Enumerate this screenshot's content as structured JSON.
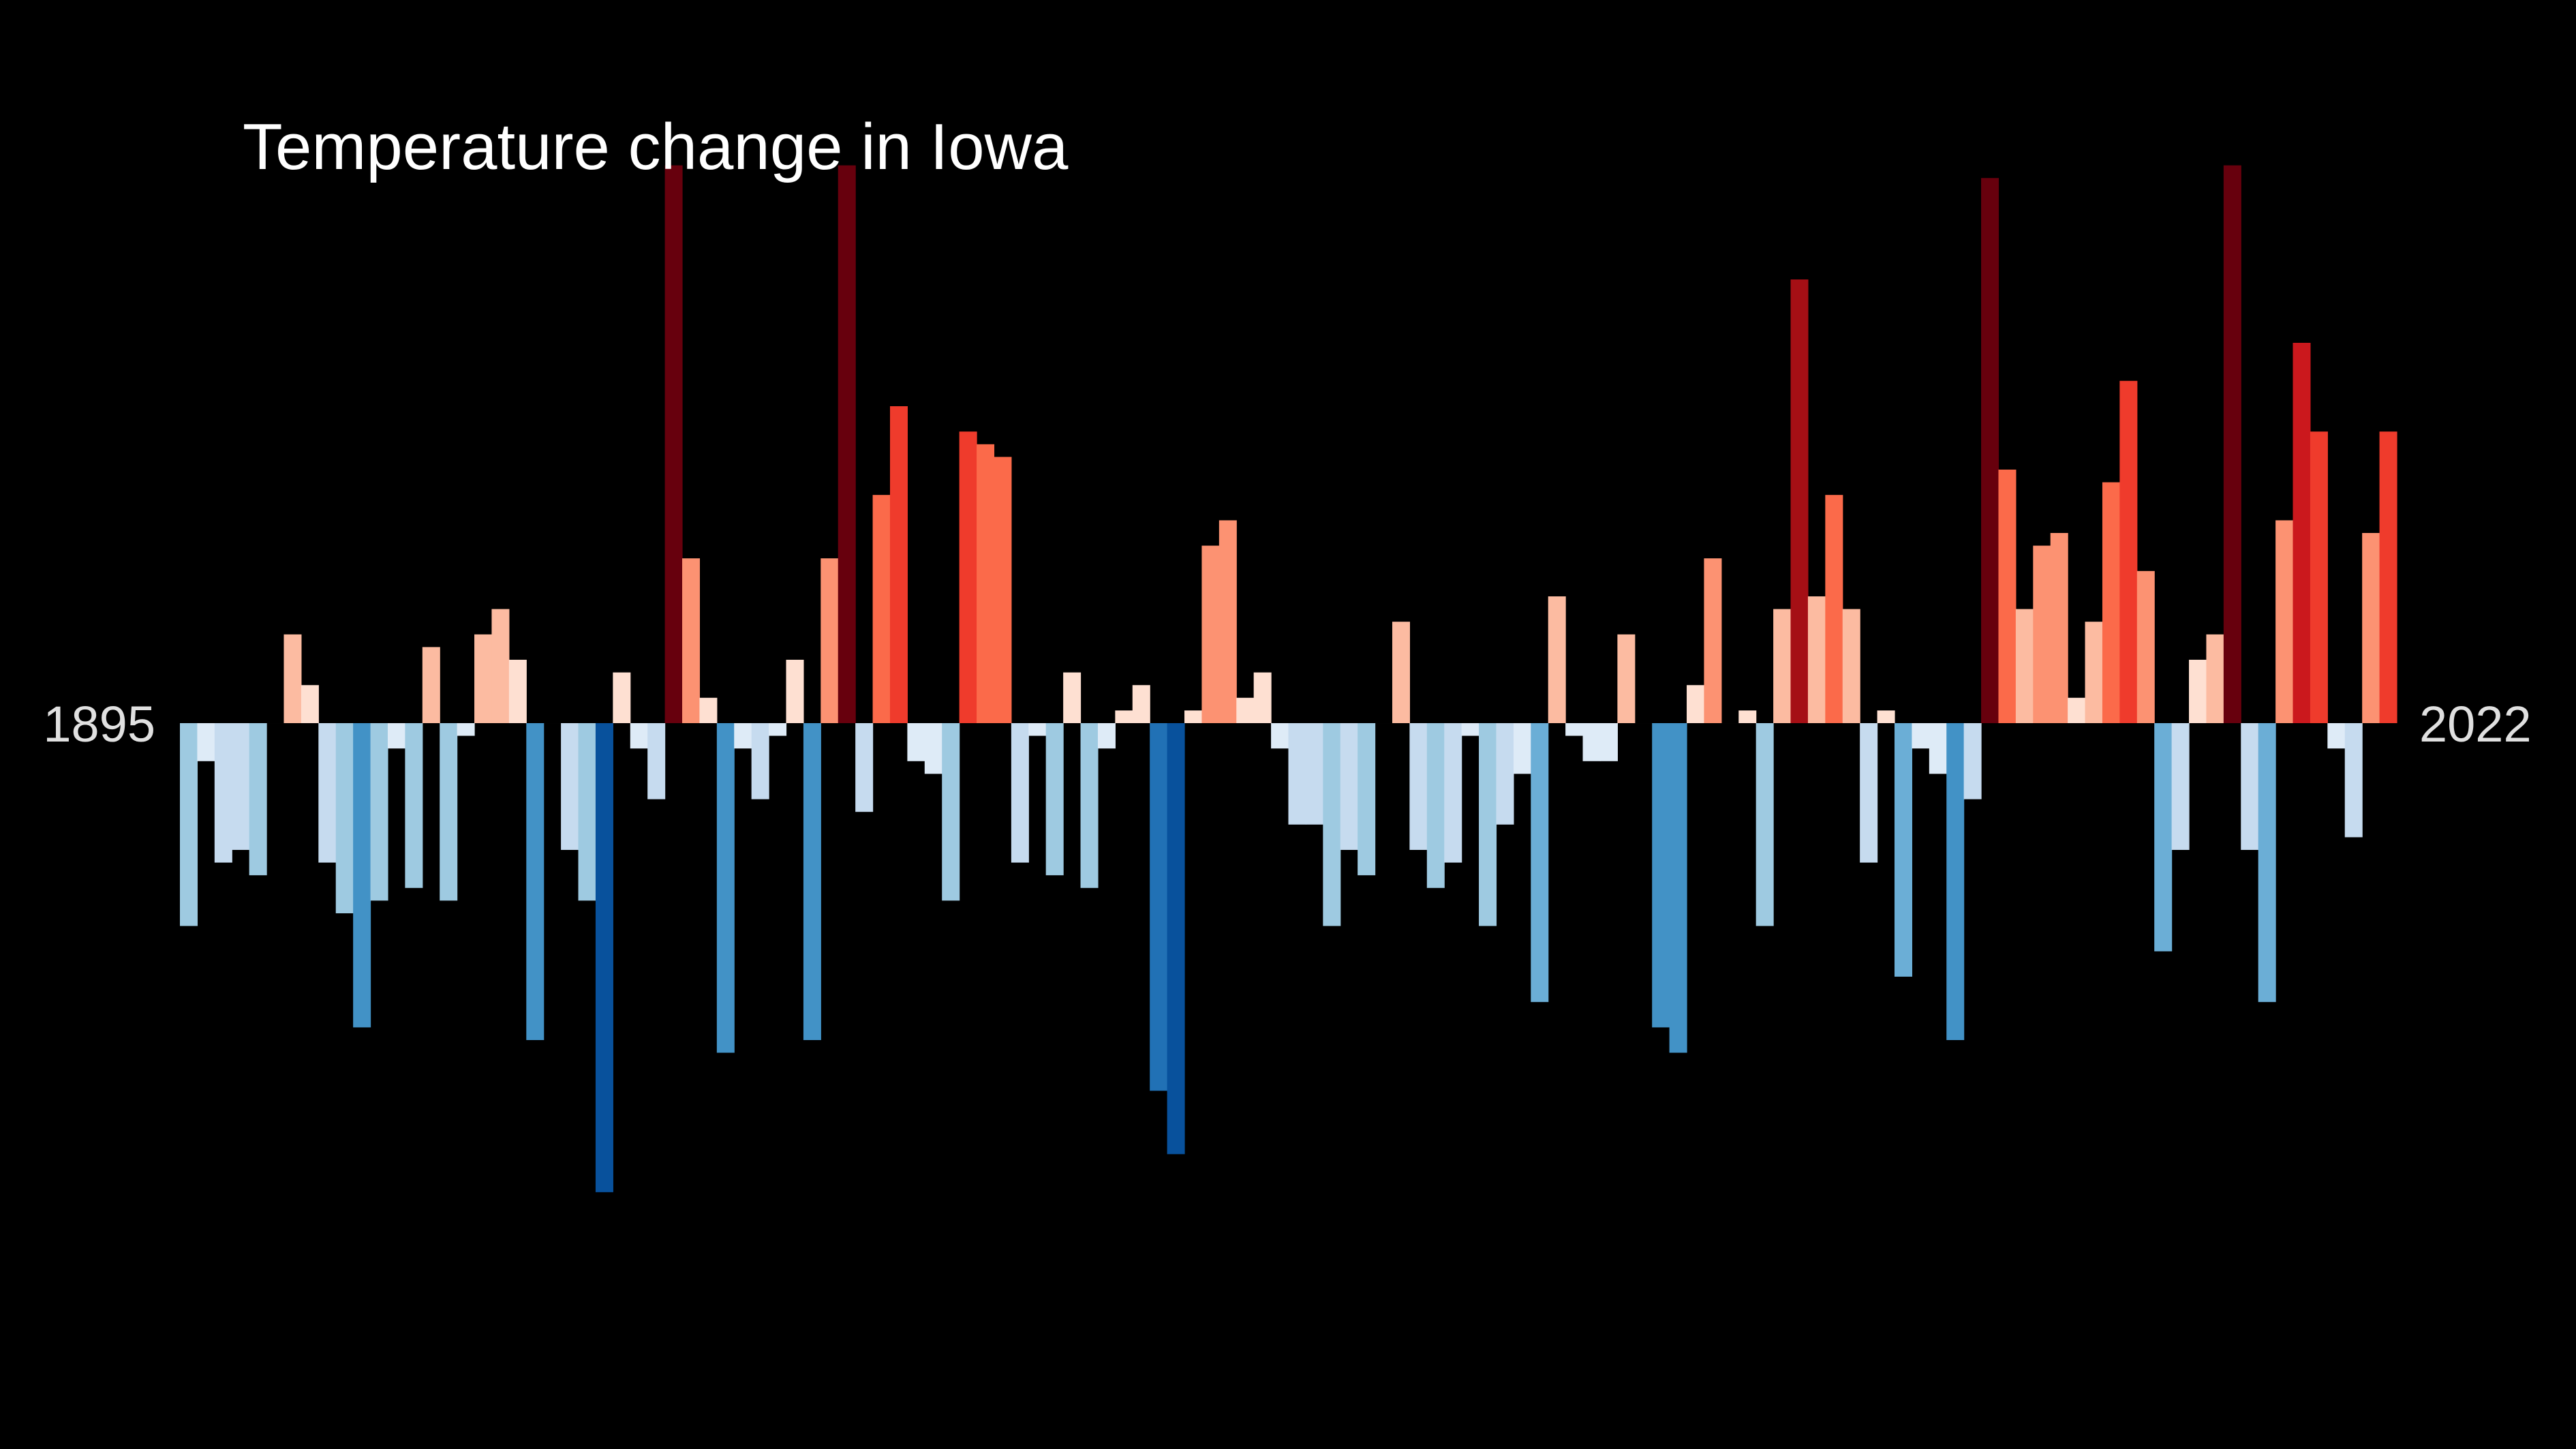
{
  "chart_data": {
    "type": "bar",
    "title": "Temperature change in Iowa",
    "x_start_label": "1895",
    "x_end_label": "2022",
    "x": [
      1895,
      1896,
      1897,
      1898,
      1899,
      1900,
      1901,
      1902,
      1903,
      1904,
      1905,
      1906,
      1907,
      1908,
      1909,
      1910,
      1911,
      1912,
      1913,
      1914,
      1915,
      1916,
      1917,
      1918,
      1919,
      1920,
      1921,
      1922,
      1923,
      1924,
      1925,
      1926,
      1927,
      1928,
      1929,
      1930,
      1931,
      1932,
      1933,
      1934,
      1935,
      1936,
      1937,
      1938,
      1939,
      1940,
      1941,
      1942,
      1943,
      1944,
      1945,
      1946,
      1947,
      1948,
      1949,
      1950,
      1951,
      1952,
      1953,
      1954,
      1955,
      1956,
      1957,
      1958,
      1959,
      1960,
      1961,
      1962,
      1963,
      1964,
      1965,
      1966,
      1967,
      1968,
      1969,
      1970,
      1971,
      1972,
      1973,
      1974,
      1975,
      1976,
      1977,
      1978,
      1979,
      1980,
      1981,
      1982,
      1983,
      1984,
      1985,
      1986,
      1987,
      1988,
      1989,
      1990,
      1991,
      1992,
      1993,
      1994,
      1995,
      1996,
      1997,
      1998,
      1999,
      2000,
      2001,
      2002,
      2003,
      2004,
      2005,
      2006,
      2007,
      2008,
      2009,
      2010,
      2011,
      2012,
      2013,
      2014,
      2015,
      2016,
      2017,
      2018,
      2019,
      2020,
      2021,
      2022
    ],
    "values": [
      -1.6,
      -0.3,
      -1.1,
      -1.0,
      -1.2,
      0.0,
      0.7,
      0.3,
      -1.1,
      -1.5,
      -2.4,
      -1.4,
      -0.2,
      -1.3,
      0.6,
      -1.4,
      -0.1,
      0.7,
      0.9,
      0.5,
      -2.5,
      0.0,
      -1.0,
      -1.4,
      -3.7,
      0.4,
      -0.2,
      -0.6,
      4.4,
      1.3,
      0.2,
      -2.6,
      -0.2,
      -0.6,
      -0.1,
      0.5,
      -2.5,
      1.3,
      4.4,
      -0.7,
      1.8,
      2.5,
      -0.3,
      -0.4,
      -1.4,
      2.3,
      2.2,
      2.1,
      -1.1,
      -0.1,
      -1.2,
      0.4,
      -1.3,
      -0.2,
      0.1,
      0.3,
      -2.9,
      -3.4,
      0.1,
      1.4,
      1.6,
      0.2,
      0.4,
      -0.2,
      -0.8,
      -0.8,
      -1.6,
      -1.0,
      -1.2,
      0.0,
      0.8,
      -1.0,
      -1.3,
      -1.1,
      -0.1,
      -1.6,
      -0.8,
      -0.4,
      -2.2,
      1.0,
      -0.1,
      -0.3,
      -0.3,
      0.7,
      0.0,
      -2.4,
      -2.6,
      0.3,
      1.3,
      0.0,
      0.1,
      -1.6,
      0.9,
      3.5,
      1.0,
      1.8,
      0.9,
      -1.1,
      0.1,
      -2.0,
      -0.2,
      -0.4,
      -2.5,
      -0.6,
      4.3,
      2.0,
      0.9,
      1.4,
      1.5,
      0.2,
      0.8,
      1.9,
      2.7,
      1.2,
      -1.8,
      -1.0,
      0.5,
      0.7,
      4.4,
      -1.0,
      -2.2,
      1.6,
      3.0,
      2.3,
      -0.2,
      -0.9,
      1.5,
      2.3
    ],
    "color_scale": [
      "#08306b",
      "#08519c",
      "#2171b5",
      "#4292c6",
      "#6baed6",
      "#9ecae1",
      "#c6dbef",
      "#deebf7",
      "#fee0d2",
      "#fcbba1",
      "#fc9272",
      "#fb6a4a",
      "#ef3b2c",
      "#cb181d",
      "#a50f15",
      "#67000d"
    ],
    "ylim": [
      -4.5,
      4.5
    ]
  }
}
